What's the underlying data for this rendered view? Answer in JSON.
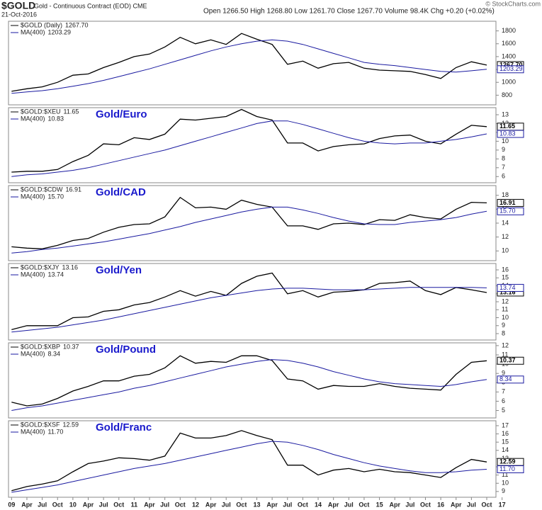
{
  "header": {
    "symbol": "$GOLD",
    "description": "Gold - Continuous Contract (EOD) CME",
    "date": "21-Oct-2016",
    "quote": "Open 1266.50 High 1268.80 Low 1261.70 Close 1267.70 Volume 98.4K Chg +0.20 (+0.02%)",
    "source": "© StockCharts.com"
  },
  "chart_data": [
    {
      "type": "line",
      "xlim": [
        2008.95,
        2016.9
      ],
      "ylim": [
        650,
        1950
      ],
      "yticks": [
        800,
        1000,
        1200,
        1400,
        1600,
        1800
      ],
      "x": [
        2009.0,
        2009.25,
        2009.5,
        2009.75,
        2010.0,
        2010.25,
        2010.5,
        2010.75,
        2011.0,
        2011.25,
        2011.5,
        2011.75,
        2012.0,
        2012.25,
        2012.5,
        2012.75,
        2013.0,
        2013.25,
        2013.5,
        2013.75,
        2014.0,
        2014.25,
        2014.5,
        2014.75,
        2015.0,
        2015.25,
        2015.5,
        2015.75,
        2016.0,
        2016.25,
        2016.5,
        2016.75
      ],
      "series": [
        {
          "name": "$GOLD (Daily)",
          "color": "#000000",
          "values": [
            860,
            900,
            930,
            1000,
            1110,
            1130,
            1230,
            1310,
            1400,
            1440,
            1550,
            1700,
            1600,
            1660,
            1590,
            1760,
            1670,
            1590,
            1280,
            1330,
            1220,
            1290,
            1310,
            1220,
            1190,
            1180,
            1170,
            1120,
            1060,
            1230,
            1320,
            1267.7
          ],
          "value_labels": [
            null,
            null,
            null,
            null,
            null,
            null,
            null,
            null,
            null,
            null,
            null,
            null,
            null,
            null,
            null,
            null,
            null,
            null,
            null,
            null,
            null,
            null,
            null,
            null,
            null,
            null,
            null,
            null,
            null,
            null,
            null,
            "1267.70"
          ]
        },
        {
          "name": "MA(400)",
          "color": "#1a1aa0",
          "values": [
            830,
            850,
            870,
            900,
            940,
            980,
            1030,
            1090,
            1150,
            1210,
            1280,
            1350,
            1420,
            1490,
            1550,
            1600,
            1640,
            1660,
            1640,
            1590,
            1520,
            1450,
            1380,
            1310,
            1280,
            1260,
            1230,
            1200,
            1170,
            1160,
            1180,
            1203.29
          ]
        }
      ]
    },
    {
      "type": "line",
      "title": "Gold/Euro",
      "xlim": [
        2008.95,
        2016.9
      ],
      "ylim": [
        5.3,
        13.8
      ],
      "yticks": [
        6,
        7,
        8,
        9,
        10,
        11,
        12,
        13
      ],
      "x": [
        2009.0,
        2009.25,
        2009.5,
        2009.75,
        2010.0,
        2010.25,
        2010.5,
        2010.75,
        2011.0,
        2011.25,
        2011.5,
        2011.75,
        2012.0,
        2012.25,
        2012.5,
        2012.75,
        2013.0,
        2013.25,
        2013.5,
        2013.75,
        2014.0,
        2014.25,
        2014.5,
        2014.75,
        2015.0,
        2015.25,
        2015.5,
        2015.75,
        2016.0,
        2016.25,
        2016.5,
        2016.75
      ],
      "series": [
        {
          "name": "$GOLD:$XEU",
          "color": "#000000",
          "values": [
            6.5,
            6.6,
            6.6,
            6.8,
            7.7,
            8.4,
            9.7,
            9.6,
            10.4,
            10.2,
            10.8,
            12.5,
            12.4,
            12.6,
            12.8,
            13.6,
            12.8,
            12.4,
            9.8,
            9.8,
            8.9,
            9.4,
            9.6,
            9.7,
            10.3,
            10.6,
            10.7,
            10.0,
            9.7,
            10.8,
            11.8,
            11.65
          ]
        },
        {
          "name": "MA(400)",
          "color": "#1a1aa0",
          "values": [
            6.0,
            6.2,
            6.3,
            6.5,
            6.7,
            7.0,
            7.4,
            7.8,
            8.2,
            8.6,
            9.0,
            9.5,
            10.0,
            10.5,
            11.0,
            11.5,
            12.0,
            12.3,
            12.3,
            11.9,
            11.4,
            10.9,
            10.4,
            10.0,
            9.8,
            9.7,
            9.8,
            9.8,
            10.0,
            10.2,
            10.5,
            10.83
          ]
        }
      ]
    },
    {
      "type": "line",
      "title": "Gold/CAD",
      "xlim": [
        2008.95,
        2016.9
      ],
      "ylim": [
        8.6,
        19.4
      ],
      "yticks": [
        10,
        12,
        14,
        16,
        18
      ],
      "x": [
        2009.0,
        2009.25,
        2009.5,
        2009.75,
        2010.0,
        2010.25,
        2010.5,
        2010.75,
        2011.0,
        2011.25,
        2011.5,
        2011.75,
        2012.0,
        2012.25,
        2012.5,
        2012.75,
        2013.0,
        2013.25,
        2013.5,
        2013.75,
        2014.0,
        2014.25,
        2014.5,
        2014.75,
        2015.0,
        2015.25,
        2015.5,
        2015.75,
        2016.0,
        2016.25,
        2016.5,
        2016.75
      ],
      "series": [
        {
          "name": "$GOLD:$CDW",
          "color": "#000000",
          "values": [
            10.6,
            10.4,
            10.3,
            10.8,
            11.5,
            11.8,
            12.7,
            13.4,
            13.8,
            13.9,
            14.9,
            17.7,
            16.2,
            16.3,
            16.0,
            17.3,
            16.7,
            16.3,
            13.6,
            13.6,
            13.1,
            13.9,
            14.0,
            13.8,
            14.5,
            14.4,
            15.2,
            14.8,
            14.6,
            16.0,
            17.0,
            16.91
          ]
        },
        {
          "name": "MA(400)",
          "color": "#1a1aa0",
          "values": [
            9.7,
            9.9,
            10.2,
            10.4,
            10.7,
            11.0,
            11.3,
            11.7,
            12.1,
            12.5,
            13.0,
            13.5,
            14.1,
            14.6,
            15.1,
            15.6,
            16.0,
            16.3,
            16.3,
            15.9,
            15.4,
            14.8,
            14.3,
            13.9,
            13.8,
            13.8,
            14.1,
            14.3,
            14.5,
            14.8,
            15.3,
            15.7
          ],
          "value_labels": [
            null,
            null,
            null,
            null,
            null,
            null,
            null,
            null,
            null,
            null,
            null,
            null,
            null,
            null,
            null,
            null,
            null,
            null,
            null,
            null,
            null,
            null,
            null,
            null,
            null,
            null,
            null,
            null,
            null,
            null,
            null,
            "15.70"
          ]
        }
      ]
    },
    {
      "type": "line",
      "title": "Gold/Yen",
      "xlim": [
        2008.95,
        2016.9
      ],
      "ylim": [
        7.2,
        16.8
      ],
      "yticks": [
        8,
        9,
        10,
        11,
        12,
        13,
        14,
        15,
        16
      ],
      "x": [
        2009.0,
        2009.25,
        2009.5,
        2009.75,
        2010.0,
        2010.25,
        2010.5,
        2010.75,
        2011.0,
        2011.25,
        2011.5,
        2011.75,
        2012.0,
        2012.25,
        2012.5,
        2012.75,
        2013.0,
        2013.25,
        2013.5,
        2013.75,
        2014.0,
        2014.25,
        2014.5,
        2014.75,
        2015.0,
        2015.25,
        2015.5,
        2015.75,
        2016.0,
        2016.25,
        2016.5,
        2016.75
      ],
      "series": [
        {
          "name": "$GOLD:$XJY",
          "color": "#000000",
          "values": [
            8.5,
            9.0,
            9.0,
            9.0,
            10.0,
            10.1,
            10.8,
            11.0,
            11.6,
            11.9,
            12.6,
            13.4,
            12.7,
            13.3,
            12.8,
            14.3,
            15.2,
            15.6,
            13.0,
            13.4,
            12.6,
            13.2,
            13.3,
            13.5,
            14.3,
            14.4,
            14.6,
            13.4,
            12.9,
            13.8,
            13.5,
            13.16
          ]
        },
        {
          "name": "MA(400)",
          "color": "#1a1aa0",
          "values": [
            8.2,
            8.4,
            8.6,
            8.8,
            9.1,
            9.4,
            9.7,
            10.1,
            10.5,
            10.9,
            11.3,
            11.7,
            12.1,
            12.5,
            12.8,
            13.1,
            13.4,
            13.6,
            13.7,
            13.7,
            13.6,
            13.5,
            13.5,
            13.5,
            13.6,
            13.7,
            13.8,
            13.8,
            13.8,
            13.8,
            13.8,
            13.74
          ]
        }
      ]
    },
    {
      "type": "line",
      "title": "Gold/Pound",
      "xlim": [
        2008.95,
        2016.9
      ],
      "ylim": [
        4.2,
        12.3
      ],
      "yticks": [
        5,
        6,
        7,
        8,
        9,
        10,
        11,
        12
      ],
      "x": [
        2009.0,
        2009.25,
        2009.5,
        2009.75,
        2010.0,
        2010.25,
        2010.5,
        2010.75,
        2011.0,
        2011.25,
        2011.5,
        2011.75,
        2012.0,
        2012.25,
        2012.5,
        2012.75,
        2013.0,
        2013.25,
        2013.5,
        2013.75,
        2014.0,
        2014.25,
        2014.5,
        2014.75,
        2015.0,
        2015.25,
        2015.5,
        2015.75,
        2016.0,
        2016.25,
        2016.5,
        2016.75
      ],
      "series": [
        {
          "name": "$GOLD:$XBP",
          "color": "#000000",
          "values": [
            5.9,
            5.5,
            5.7,
            6.3,
            7.1,
            7.6,
            8.2,
            8.2,
            8.7,
            8.9,
            9.6,
            10.9,
            10.1,
            10.3,
            10.2,
            10.9,
            10.9,
            10.4,
            8.4,
            8.2,
            7.3,
            7.7,
            7.6,
            7.6,
            7.9,
            7.6,
            7.4,
            7.3,
            7.2,
            8.9,
            10.2,
            10.37
          ]
        },
        {
          "name": "MA(400)",
          "color": "#1a1aa0",
          "values": [
            5.0,
            5.3,
            5.5,
            5.8,
            6.1,
            6.4,
            6.7,
            7.0,
            7.4,
            7.7,
            8.1,
            8.5,
            8.9,
            9.3,
            9.7,
            10.0,
            10.3,
            10.5,
            10.4,
            10.1,
            9.7,
            9.2,
            8.8,
            8.4,
            8.1,
            7.9,
            7.8,
            7.7,
            7.6,
            7.8,
            8.1,
            8.34
          ]
        }
      ]
    },
    {
      "type": "line",
      "title": "Gold/Franc",
      "xlim": [
        2008.95,
        2016.9
      ],
      "ylim": [
        8.3,
        17.6
      ],
      "yticks": [
        9,
        10,
        11,
        12,
        13,
        14,
        15,
        16,
        17
      ],
      "x": [
        2009.0,
        2009.25,
        2009.5,
        2009.75,
        2010.0,
        2010.25,
        2010.5,
        2010.75,
        2011.0,
        2011.25,
        2011.5,
        2011.75,
        2012.0,
        2012.25,
        2012.5,
        2012.75,
        2013.0,
        2013.25,
        2013.5,
        2013.75,
        2014.0,
        2014.25,
        2014.5,
        2014.75,
        2015.0,
        2015.25,
        2015.5,
        2015.75,
        2016.0,
        2016.25,
        2016.5,
        2016.75
      ],
      "xticks": [
        {
          "value": 2009.0,
          "label": "09"
        },
        {
          "value": 2009.25,
          "label": "Apr"
        },
        {
          "value": 2009.5,
          "label": "Jul"
        },
        {
          "value": 2009.75,
          "label": "Oct"
        },
        {
          "value": 2010.0,
          "label": "10"
        },
        {
          "value": 2010.25,
          "label": "Apr"
        },
        {
          "value": 2010.5,
          "label": "Jul"
        },
        {
          "value": 2010.75,
          "label": "Oct"
        },
        {
          "value": 2011.0,
          "label": "11"
        },
        {
          "value": 2011.25,
          "label": "Apr"
        },
        {
          "value": 2011.5,
          "label": "Jul"
        },
        {
          "value": 2011.75,
          "label": "Oct"
        },
        {
          "value": 2012.0,
          "label": "12"
        },
        {
          "value": 2012.25,
          "label": "Apr"
        },
        {
          "value": 2012.5,
          "label": "Jul"
        },
        {
          "value": 2012.75,
          "label": "Oct"
        },
        {
          "value": 2013.0,
          "label": "13"
        },
        {
          "value": 2013.25,
          "label": "Apr"
        },
        {
          "value": 2013.5,
          "label": "Jul"
        },
        {
          "value": 2013.75,
          "label": "Oct"
        },
        {
          "value": 2014.0,
          "label": "14"
        },
        {
          "value": 2014.25,
          "label": "Apr"
        },
        {
          "value": 2014.5,
          "label": "Jul"
        },
        {
          "value": 2014.75,
          "label": "Oct"
        },
        {
          "value": 2015.0,
          "label": "15"
        },
        {
          "value": 2015.25,
          "label": "Apr"
        },
        {
          "value": 2015.5,
          "label": "Jul"
        },
        {
          "value": 2015.75,
          "label": "Oct"
        },
        {
          "value": 2016.0,
          "label": "16"
        },
        {
          "value": 2016.25,
          "label": "Apr"
        },
        {
          "value": 2016.5,
          "label": "Jul"
        },
        {
          "value": 2016.75,
          "label": "Oct"
        },
        {
          "value": 2017.0,
          "label": "17"
        }
      ],
      "series": [
        {
          "name": "$GOLD:$XSF",
          "color": "#000000",
          "values": [
            9.1,
            9.6,
            9.9,
            10.3,
            11.4,
            12.4,
            12.7,
            13.1,
            13.0,
            12.8,
            13.3,
            16.1,
            15.5,
            15.5,
            15.8,
            16.4,
            15.8,
            15.3,
            12.2,
            12.2,
            11.0,
            11.6,
            11.8,
            11.4,
            11.7,
            11.4,
            11.3,
            11.0,
            10.7,
            11.9,
            12.9,
            12.59
          ]
        },
        {
          "name": "MA(400)",
          "color": "#1a1aa0",
          "values": [
            8.9,
            9.2,
            9.5,
            9.8,
            10.2,
            10.6,
            11.0,
            11.4,
            11.8,
            12.1,
            12.4,
            12.8,
            13.2,
            13.6,
            14.0,
            14.4,
            14.8,
            15.1,
            15.0,
            14.6,
            14.1,
            13.5,
            13.0,
            12.5,
            12.1,
            11.8,
            11.5,
            11.3,
            11.3,
            11.4,
            11.6,
            11.7
          ],
          "value_labels": [
            null,
            null,
            null,
            null,
            null,
            null,
            null,
            null,
            null,
            null,
            null,
            null,
            null,
            null,
            null,
            null,
            null,
            null,
            null,
            null,
            null,
            null,
            null,
            null,
            null,
            null,
            null,
            null,
            null,
            null,
            null,
            "11.70"
          ]
        }
      ]
    }
  ]
}
